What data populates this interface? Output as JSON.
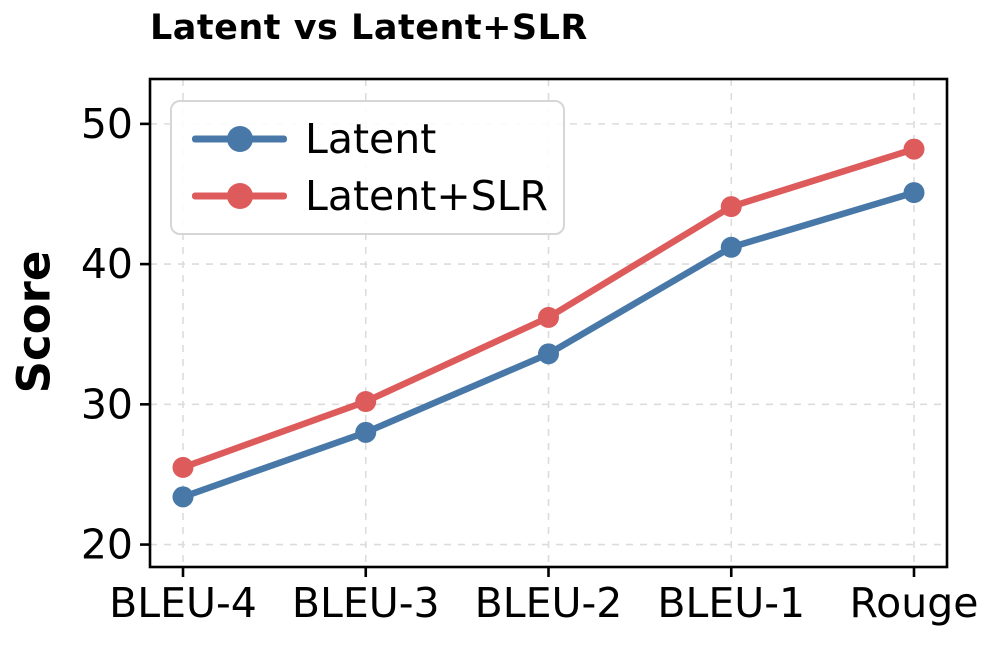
{
  "figure": {
    "background": "#ffffff",
    "text_color": "#000000",
    "axis_color": "#000000",
    "grid_color": "#dcdcdc",
    "legend_border_color": "#d6d6d6"
  },
  "chart_data": {
    "type": "line",
    "title": "Latent vs Latent+SLR",
    "xlabel": "",
    "ylabel": "Score",
    "categories": [
      "BLEU-4",
      "BLEU-3",
      "BLEU-2",
      "BLEU-1",
      "Rouge"
    ],
    "series": [
      {
        "name": "Latent",
        "color": "#4878A8",
        "values": [
          23.4,
          28.0,
          33.6,
          41.2,
          45.1
        ]
      },
      {
        "name": "Latent+SLR",
        "color": "#DE5B5C",
        "values": [
          25.5,
          30.2,
          36.2,
          44.1,
          48.2
        ]
      }
    ],
    "yticks": [
      20,
      30,
      40,
      50
    ],
    "ylim": [
      18.4,
      53.2
    ],
    "grid": "dashed",
    "legend_position": "upper-left",
    "marker": "circle"
  }
}
